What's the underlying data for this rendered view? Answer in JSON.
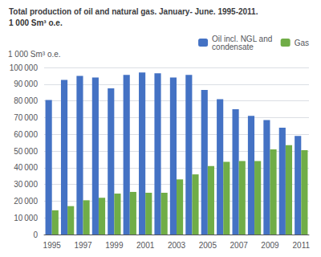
{
  "chart_data": {
    "type": "bar",
    "title": "Total production of oil and natural gas. January- June. 1995-2011.",
    "subtitle": "1 000 Sm³ o.e.",
    "ylabel": "1 000 Sm³ o.e.",
    "categories": [
      "1995",
      null,
      "1997",
      null,
      "1999",
      null,
      "2001",
      null,
      "2003",
      null,
      "2005",
      null,
      "2007",
      null,
      "2009",
      null,
      "2011"
    ],
    "series": [
      {
        "name": "Oil incl. NGL and\ncondensate",
        "color": "#4472C4",
        "values": [
          80500,
          92500,
          95000,
          94000,
          87500,
          95500,
          97000,
          96500,
          94000,
          95500,
          86500,
          81000,
          75000,
          71000,
          68500,
          64000,
          59000
        ]
      },
      {
        "name": "Gas",
        "color": "#70AD47",
        "values": [
          14500,
          17000,
          20500,
          22000,
          24500,
          25500,
          25000,
          25000,
          33000,
          36000,
          41000,
          43500,
          44000,
          44000,
          51000,
          53500,
          50500
        ]
      }
    ],
    "ylim": [
      0,
      100000
    ],
    "yticks": [
      0,
      {
        "value": 10000,
        "label": "10 000"
      },
      {
        "value": 20000,
        "label": "20 000"
      },
      {
        "value": 30000,
        "label": "30 000"
      },
      {
        "value": 40000,
        "label": "40 000"
      },
      {
        "value": 50000,
        "label": "50 000"
      },
      {
        "value": 60000,
        "label": "60 000"
      },
      {
        "value": 70000,
        "label": "70 000"
      },
      {
        "value": 80000,
        "label": "80 000"
      },
      {
        "value": 90000,
        "label": "90 000"
      },
      {
        "value": 100000,
        "label": "100 000"
      }
    ],
    "grid": true,
    "legend": "upper right"
  }
}
